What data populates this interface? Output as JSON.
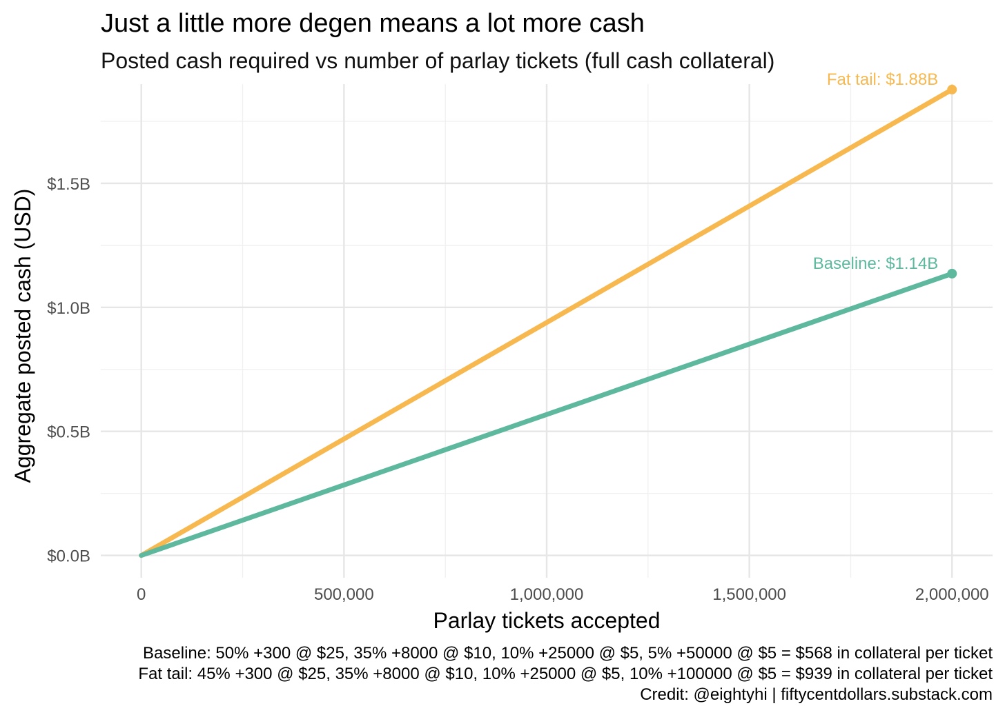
{
  "chart_data": {
    "type": "line",
    "title": "Just a little more degen means a lot more cash",
    "subtitle": "Posted cash required vs number of parlay tickets (full cash collateral)",
    "xlabel": "Parlay tickets accepted",
    "ylabel": "Aggregate posted cash (USD)",
    "xlim": [
      -100000,
      2100000
    ],
    "ylim": [
      -0.09,
      1.9
    ],
    "x_ticks": [
      0,
      500000,
      1000000,
      1500000,
      2000000
    ],
    "x_tick_labels": [
      "0",
      "500,000",
      "1,000,000",
      "1,500,000",
      "2,000,000"
    ],
    "x_minor_ticks": [
      250000,
      750000,
      1250000,
      1750000
    ],
    "y_ticks": [
      0,
      0.5,
      1.0,
      1.5
    ],
    "y_tick_labels": [
      "$0.0B",
      "$0.5B",
      "$1.0B",
      "$1.5B"
    ],
    "y_minor_ticks": [
      0.25,
      0.75,
      1.25,
      1.75
    ],
    "grid": true,
    "series": [
      {
        "name": "Fat tail",
        "color": "#F7B84F",
        "x": [
          0,
          2000000
        ],
        "y": [
          0,
          1.878
        ],
        "end_label": "Fat tail: $1.88B"
      },
      {
        "name": "Baseline",
        "color": "#5DB89E",
        "x": [
          0,
          2000000
        ],
        "y": [
          0,
          1.136
        ],
        "end_label": "Baseline: $1.14B"
      }
    ],
    "caption": [
      "Baseline: 50% +300 @ $25, 35% +8000 @ $10, 10% +25000 @ $5, 5% +50000 @ $5 = $568 in collateral per ticket",
      "Fat tail: 45% +300 @ $25, 35% +8000 @ $10, 10% +25000 @ $5, 10% +100000 @ $5 = $939 in collateral per ticket",
      "Credit: @eightyhi | fiftycentdollars.substack.com"
    ]
  }
}
